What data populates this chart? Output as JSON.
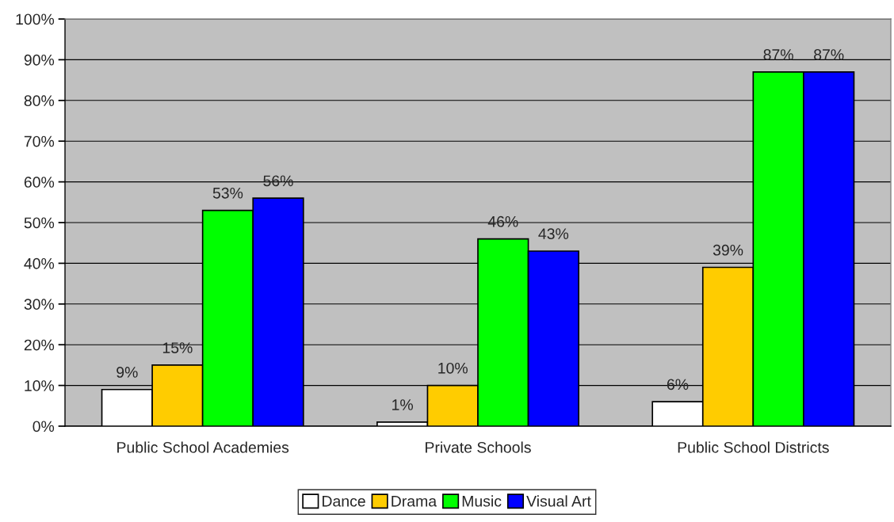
{
  "chart_data": {
    "type": "bar",
    "categories": [
      "Public School Academies",
      "Private Schools",
      "Public School Districts"
    ],
    "series": [
      {
        "name": "Dance",
        "color": "#ffffff",
        "values": [
          9,
          1,
          6
        ],
        "value_labels": [
          "9%",
          "1%",
          "6%"
        ]
      },
      {
        "name": "Drama",
        "color": "#ffcc00",
        "values": [
          15,
          10,
          39
        ],
        "value_labels": [
          "15%",
          "10%",
          "39%"
        ]
      },
      {
        "name": "Music",
        "color": "#00ff00",
        "values": [
          53,
          46,
          87
        ],
        "value_labels": [
          "53%",
          "46%",
          "87%"
        ]
      },
      {
        "name": "Visual Art",
        "color": "#0000ff",
        "values": [
          56,
          43,
          87
        ],
        "value_labels": [
          "56%",
          "43%",
          "87%"
        ]
      }
    ],
    "ylim": [
      0,
      100
    ],
    "yticks": [
      {
        "value": 0,
        "label": "0%"
      },
      {
        "value": 10,
        "label": "10%"
      },
      {
        "value": 20,
        "label": "20%"
      },
      {
        "value": 30,
        "label": "30%"
      },
      {
        "value": 40,
        "label": "40%"
      },
      {
        "value": 50,
        "label": "50%"
      },
      {
        "value": 60,
        "label": "60%"
      },
      {
        "value": 70,
        "label": "70%"
      },
      {
        "value": 80,
        "label": "80%"
      },
      {
        "value": 90,
        "label": "90%"
      },
      {
        "value": 100,
        "label": "100%"
      }
    ],
    "grid": "y",
    "legend": "bottom"
  }
}
